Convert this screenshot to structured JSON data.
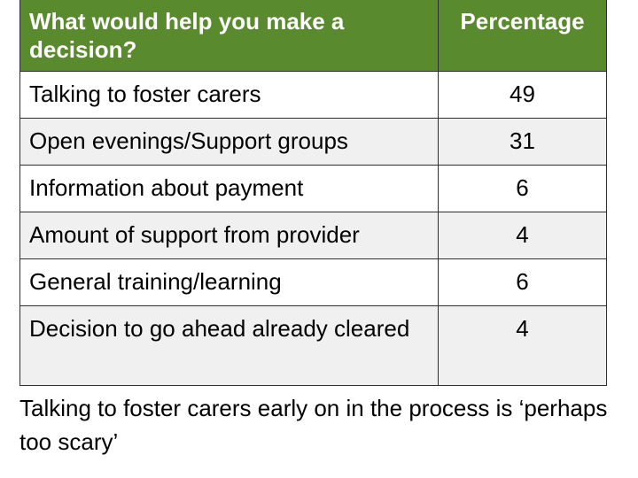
{
  "table": {
    "header": {
      "question": "What would help you make a decision?",
      "percentage": "Percentage"
    },
    "rows": [
      {
        "label": "Talking to foster carers",
        "value": "49"
      },
      {
        "label": "Open evenings/Support groups",
        "value": "31"
      },
      {
        "label": "Information about payment",
        "value": "6"
      },
      {
        "label": "Amount of support from provider",
        "value": "4"
      },
      {
        "label": "General training/learning",
        "value": "6"
      },
      {
        "label": "Decision to go ahead already cleared",
        "value": "4"
      }
    ]
  },
  "footnote": "Talking to foster carers early on in the process is ‘perhaps too scary’",
  "colors": {
    "header_background": "#5a8a2e",
    "header_text": "#ffffff",
    "row_alt_background": "#f0f0f0"
  }
}
